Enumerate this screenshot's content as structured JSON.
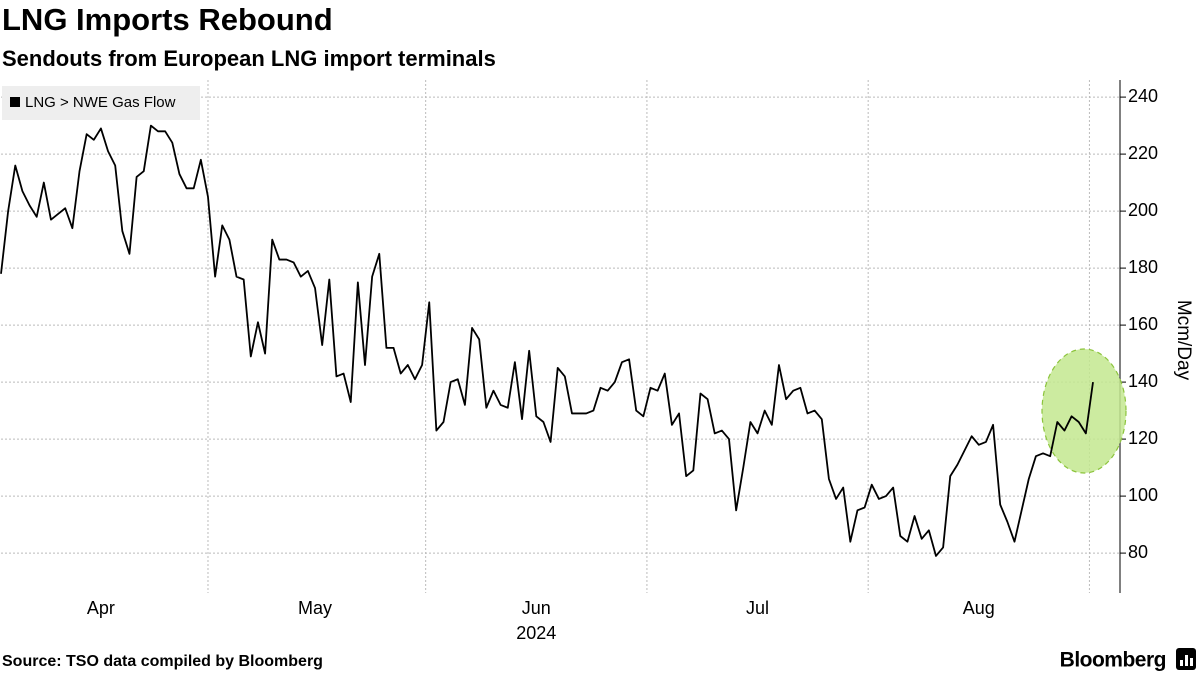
{
  "chart_data": {
    "type": "line",
    "title": "LNG Imports Rebound",
    "subtitle": "Sendouts from European LNG import terminals",
    "source": "Source: TSO data compiled by Bloomberg",
    "logo": "Bloomberg",
    "y_label": "Mcm/Day",
    "year_label": "2024",
    "categories": [
      null,
      null,
      null,
      null,
      null,
      null,
      null,
      null,
      null,
      null,
      null,
      null,
      null,
      null,
      "Apr",
      null,
      null,
      null,
      null,
      null,
      null,
      null,
      null,
      null,
      null,
      null,
      null,
      null,
      null,
      null,
      null,
      null,
      null,
      null,
      null,
      null,
      null,
      null,
      null,
      null,
      null,
      null,
      null,
      null,
      "May",
      null,
      null,
      null,
      null,
      null,
      null,
      null,
      null,
      null,
      null,
      null,
      null,
      null,
      null,
      null,
      null,
      null,
      null,
      null,
      null,
      null,
      null,
      null,
      null,
      null,
      null,
      null,
      null,
      null,
      null,
      "Jun",
      null,
      null,
      null,
      null,
      null,
      null,
      null,
      null,
      null,
      null,
      null,
      null,
      null,
      null,
      null,
      null,
      null,
      null,
      null,
      null,
      null,
      null,
      null,
      null,
      null,
      null,
      null,
      null,
      null,
      null,
      "Jul",
      null,
      null,
      null,
      null,
      null,
      null,
      null,
      null,
      null,
      null,
      null,
      null,
      null,
      null,
      null,
      null,
      null,
      null,
      null,
      null,
      null,
      null,
      null,
      null,
      null,
      null,
      null,
      null,
      null,
      null,
      "Aug",
      null,
      null,
      null,
      null,
      null,
      null,
      null,
      null,
      null,
      null,
      null,
      null,
      null,
      null,
      null,
      null
    ],
    "series": [
      {
        "name": "LNG > NWE Gas Flow",
        "color": "#000000",
        "values": [
          178,
          200,
          216,
          207,
          202,
          198,
          210,
          197,
          199,
          201,
          194,
          214,
          227,
          225,
          229,
          221,
          216,
          193,
          185,
          212,
          214,
          230,
          228,
          228,
          224,
          213,
          208,
          208,
          218,
          205,
          177,
          195,
          190,
          177,
          176,
          149,
          161,
          150,
          190,
          183,
          183,
          182,
          177,
          179,
          173,
          153,
          176,
          142,
          143,
          133,
          175,
          146,
          177,
          185,
          152,
          152,
          143,
          146,
          141,
          146,
          168,
          123,
          126,
          140,
          141,
          132,
          159,
          155,
          131,
          137,
          132,
          131,
          147,
          127,
          151,
          128,
          126,
          119,
          145,
          142,
          129,
          129,
          129,
          130,
          138,
          137,
          140,
          147,
          148,
          130,
          128,
          138,
          137,
          143,
          125,
          129,
          107,
          109,
          136,
          134,
          122,
          123,
          120,
          95,
          110,
          126,
          122,
          130,
          125,
          146,
          134,
          137,
          138,
          129,
          130,
          127,
          106,
          99,
          103,
          84,
          95,
          96,
          104,
          99,
          100,
          103,
          86,
          84,
          93,
          85,
          88,
          79,
          82,
          107,
          111,
          116,
          121,
          118,
          119,
          125,
          97,
          91,
          84,
          95,
          106,
          114,
          115,
          114,
          126,
          123,
          128,
          126,
          122,
          140
        ]
      }
    ],
    "ylim": [
      66,
      246
    ],
    "yticks": [
      80,
      100,
      120,
      140,
      160,
      180,
      200,
      220,
      240
    ],
    "y_axis_side": "right",
    "grid": true,
    "legend": "top-left"
  }
}
